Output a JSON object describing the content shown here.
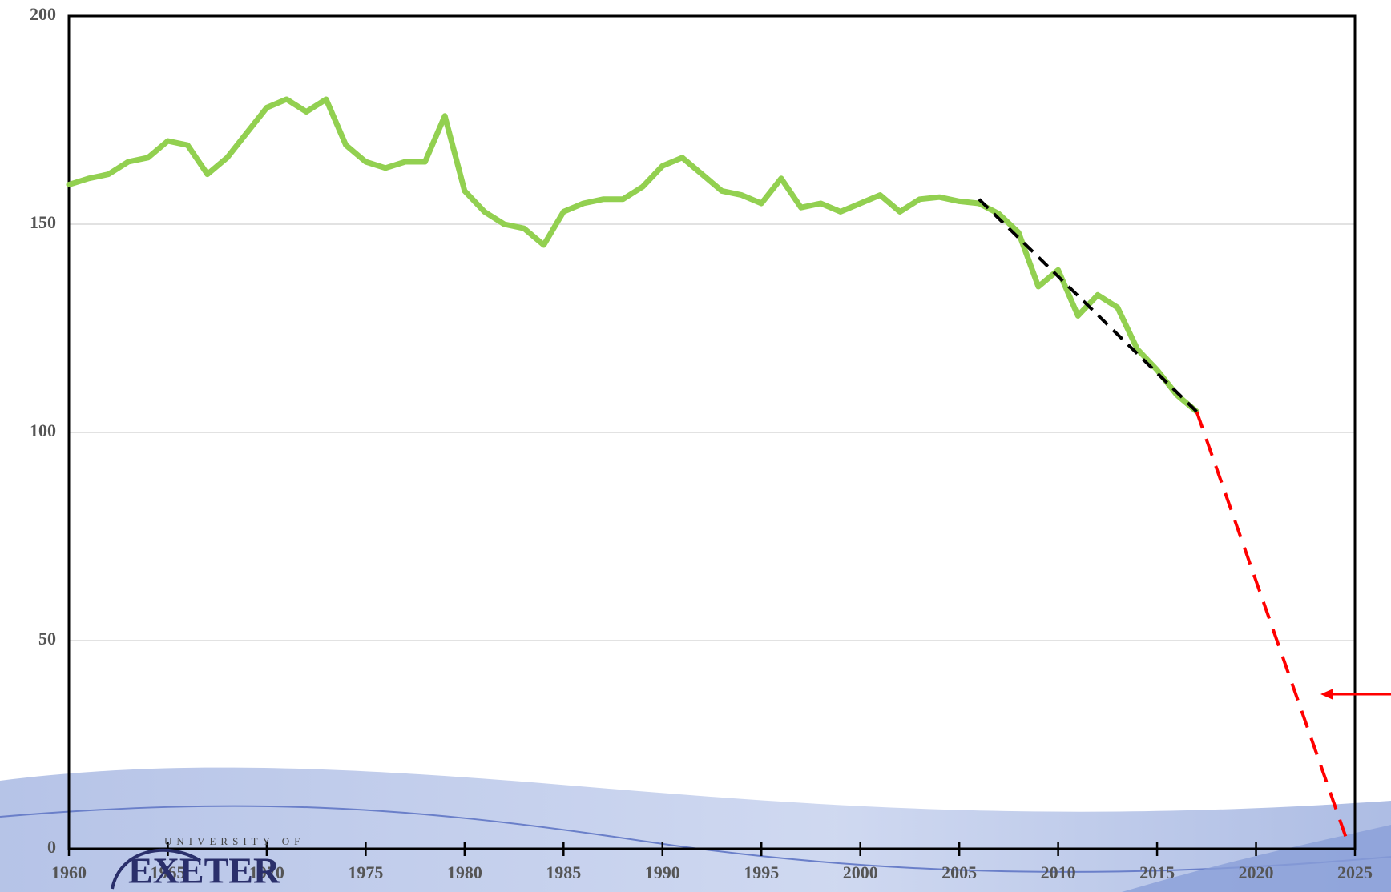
{
  "chart_data": {
    "type": "line",
    "x": [
      1960,
      1961,
      1962,
      1963,
      1964,
      1965,
      1966,
      1967,
      1968,
      1969,
      1970,
      1971,
      1972,
      1973,
      1974,
      1975,
      1976,
      1977,
      1978,
      1979,
      1980,
      1981,
      1982,
      1983,
      1984,
      1985,
      1986,
      1987,
      1988,
      1989,
      1990,
      1991,
      1992,
      1993,
      1994,
      1995,
      1996,
      1997,
      1998,
      1999,
      2000,
      2001,
      2002,
      2003,
      2004,
      2005,
      2006,
      2007,
      2008,
      2009,
      2010,
      2011,
      2012,
      2013,
      2014,
      2015,
      2016,
      2017
    ],
    "series": [
      {
        "color": "#92d050",
        "values": [
          159.5,
          161,
          162,
          165,
          166,
          170,
          169,
          162,
          166,
          172,
          178,
          180,
          177,
          180,
          169,
          165,
          163.5,
          165,
          165,
          176,
          158,
          153,
          150,
          149,
          145,
          153,
          155,
          156,
          156,
          159,
          164,
          166,
          162,
          158,
          157,
          155,
          161,
          154,
          155,
          153,
          155,
          157,
          153,
          156,
          156.5,
          155.5,
          155,
          152.5,
          148,
          135,
          139,
          128,
          133,
          130,
          120,
          115,
          109,
          105
        ]
      }
    ],
    "trend": {
      "color": "#000000",
      "x": [
        2006,
        2017
      ],
      "values": [
        156,
        105
      ]
    },
    "projection": {
      "color": "#ff0000",
      "x": [
        2017,
        2024.6
      ],
      "values": [
        105,
        2
      ]
    },
    "xlim": [
      1960,
      2025
    ],
    "xticks": [
      1960,
      1965,
      1970,
      1975,
      1980,
      1985,
      1990,
      1995,
      2000,
      2005,
      2010,
      2015,
      2020,
      2025
    ],
    "ylim": [
      0,
      200
    ],
    "yticks": [
      0,
      50,
      100,
      150,
      200
    ],
    "grid": true
  },
  "logo": {
    "line1": "UNIVERSITY OF",
    "line2": "EXETER"
  }
}
